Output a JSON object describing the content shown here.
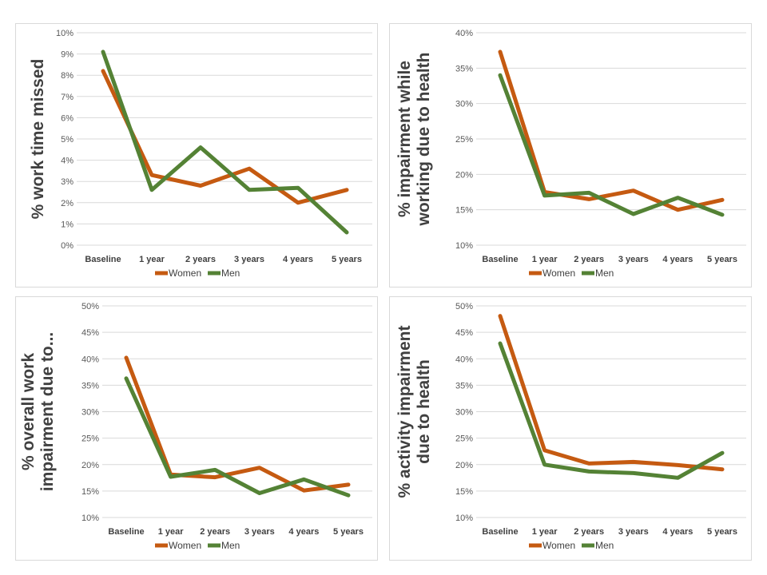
{
  "chart_data": [
    {
      "type": "line",
      "ylabel": [
        "% work time missed"
      ],
      "categories": [
        "Baseline",
        "1 year",
        "2 years",
        "3 years",
        "4 years",
        "5 years"
      ],
      "yticks": [
        "0%",
        "1%",
        "2%",
        "3%",
        "4%",
        "5%",
        "6%",
        "7%",
        "8%",
        "9%",
        "10%"
      ],
      "ylim": [
        0,
        10
      ],
      "grid": true,
      "legend_position": "bottom",
      "series": [
        {
          "name": "Women",
          "color": "#c55a11",
          "values": [
            8.2,
            3.3,
            2.8,
            3.6,
            2.0,
            2.6
          ]
        },
        {
          "name": "Men",
          "color": "#548235",
          "values": [
            9.1,
            2.6,
            4.6,
            2.6,
            2.7,
            0.6
          ]
        }
      ]
    },
    {
      "type": "line",
      "ylabel": [
        "% impairment while",
        "working due to health"
      ],
      "categories": [
        "Baseline",
        "1 year",
        "2 years",
        "3 years",
        "4 years",
        "5 years"
      ],
      "yticks": [
        "10%",
        "15%",
        "20%",
        "25%",
        "30%",
        "35%",
        "40%"
      ],
      "ylim": [
        10,
        40
      ],
      "grid": true,
      "legend_position": "bottom",
      "series": [
        {
          "name": "Women",
          "color": "#c55a11",
          "values": [
            37.3,
            17.5,
            16.5,
            17.7,
            15.0,
            16.4
          ]
        },
        {
          "name": "Men",
          "color": "#548235",
          "values": [
            34.0,
            17.0,
            17.4,
            14.4,
            16.7,
            14.3
          ]
        }
      ]
    },
    {
      "type": "line",
      "ylabel": [
        "% overall work",
        "impairment due to..."
      ],
      "categories": [
        "Baseline",
        "1 year",
        "2 years",
        "3 years",
        "4 years",
        "5 years"
      ],
      "yticks": [
        "10%",
        "15%",
        "20%",
        "25%",
        "30%",
        "35%",
        "40%",
        "45%",
        "50%"
      ],
      "ylim": [
        10,
        50
      ],
      "grid": true,
      "legend_position": "bottom",
      "series": [
        {
          "name": "Women",
          "color": "#c55a11",
          "values": [
            40.2,
            18.1,
            17.6,
            19.4,
            15.1,
            16.2
          ]
        },
        {
          "name": "Men",
          "color": "#548235",
          "values": [
            36.3,
            17.7,
            19.0,
            14.6,
            17.2,
            14.2
          ]
        }
      ]
    },
    {
      "type": "line",
      "ylabel": [
        "% activity impairment",
        "due to health"
      ],
      "categories": [
        "Baseline",
        "1 year",
        "2 years",
        "3 years",
        "4 years",
        "5 years"
      ],
      "yticks": [
        "10%",
        "15%",
        "20%",
        "25%",
        "30%",
        "35%",
        "40%",
        "45%",
        "50%"
      ],
      "ylim": [
        10,
        50
      ],
      "grid": true,
      "legend_position": "bottom",
      "series": [
        {
          "name": "Women",
          "color": "#c55a11",
          "values": [
            48.1,
            22.7,
            20.2,
            20.5,
            19.9,
            19.1
          ]
        },
        {
          "name": "Men",
          "color": "#548235",
          "values": [
            42.9,
            20.0,
            18.7,
            18.4,
            17.5,
            22.2
          ]
        }
      ]
    }
  ]
}
